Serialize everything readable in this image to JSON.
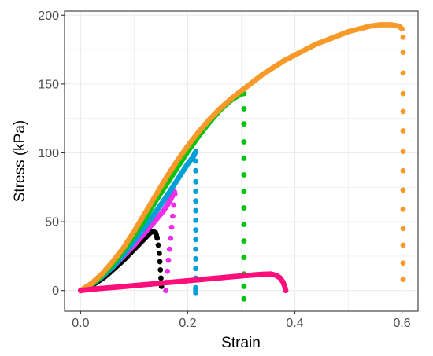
{
  "chart_data": {
    "type": "scatter",
    "title": "",
    "xlabel": "Strain",
    "ylabel": "Stress (kPa)",
    "xlim": [
      -0.03,
      0.63
    ],
    "ylim": [
      -15,
      203
    ],
    "x_ticks": [
      0.0,
      0.2,
      0.4,
      0.6
    ],
    "x_tick_labels": [
      "0.0",
      "0.2",
      "0.4",
      "0.6"
    ],
    "y_ticks": [
      0,
      50,
      100,
      150,
      200
    ],
    "y_tick_labels": [
      "0",
      "50",
      "100",
      "150",
      "200"
    ],
    "grid": true,
    "legend": "none",
    "series": [
      {
        "color": "#000000",
        "points": [
          [
            0.0,
            0
          ],
          [
            0.01,
            1.5
          ],
          [
            0.02,
            3.5
          ],
          [
            0.03,
            6
          ],
          [
            0.04,
            8.5
          ],
          [
            0.05,
            11.5
          ],
          [
            0.06,
            15
          ],
          [
            0.07,
            18.5
          ],
          [
            0.08,
            22
          ],
          [
            0.09,
            26
          ],
          [
            0.1,
            30
          ],
          [
            0.11,
            34
          ],
          [
            0.12,
            38
          ],
          [
            0.125,
            40
          ],
          [
            0.13,
            42
          ],
          [
            0.135,
            43
          ],
          [
            0.14,
            42
          ],
          [
            0.143,
            38
          ],
          [
            0.145,
            33
          ],
          [
            0.147,
            27
          ],
          [
            0.148,
            21
          ],
          [
            0.149,
            15
          ],
          [
            0.15,
            9
          ],
          [
            0.151,
            3
          ]
        ]
      },
      {
        "color": "#ee2ee8",
        "points": [
          [
            0.0,
            0
          ],
          [
            0.02,
            4
          ],
          [
            0.04,
            10
          ],
          [
            0.06,
            17
          ],
          [
            0.08,
            25
          ],
          [
            0.1,
            33
          ],
          [
            0.12,
            42
          ],
          [
            0.14,
            51
          ],
          [
            0.155,
            58
          ],
          [
            0.165,
            64
          ],
          [
            0.172,
            69
          ],
          [
            0.175,
            72
          ],
          [
            0.176,
            70
          ],
          [
            0.174,
            62
          ],
          [
            0.172,
            54
          ],
          [
            0.17,
            46
          ],
          [
            0.168,
            38
          ],
          [
            0.166,
            30
          ],
          [
            0.164,
            22
          ],
          [
            0.162,
            14
          ],
          [
            0.16,
            6
          ],
          [
            0.159,
            0
          ]
        ]
      },
      {
        "color": "#009fd7",
        "points": [
          [
            0.0,
            0
          ],
          [
            0.02,
            4
          ],
          [
            0.04,
            10
          ],
          [
            0.06,
            17
          ],
          [
            0.08,
            26
          ],
          [
            0.1,
            36
          ],
          [
            0.12,
            46
          ],
          [
            0.14,
            57
          ],
          [
            0.16,
            68
          ],
          [
            0.18,
            80
          ],
          [
            0.2,
            92
          ],
          [
            0.21,
            97
          ],
          [
            0.215,
            101
          ],
          [
            0.215,
            94
          ],
          [
            0.215,
            87
          ],
          [
            0.215,
            79
          ],
          [
            0.215,
            72
          ],
          [
            0.215,
            65
          ],
          [
            0.215,
            58
          ],
          [
            0.215,
            51
          ],
          [
            0.215,
            44
          ],
          [
            0.215,
            37
          ],
          [
            0.215,
            30
          ],
          [
            0.215,
            23
          ],
          [
            0.215,
            16
          ],
          [
            0.215,
            9
          ],
          [
            0.215,
            2
          ],
          [
            0.215,
            -2
          ]
        ]
      },
      {
        "color": "#00c410",
        "points": [
          [
            0.0,
            0
          ],
          [
            0.02,
            4
          ],
          [
            0.04,
            11
          ],
          [
            0.06,
            19
          ],
          [
            0.08,
            29
          ],
          [
            0.1,
            40
          ],
          [
            0.12,
            52
          ],
          [
            0.14,
            65
          ],
          [
            0.16,
            77
          ],
          [
            0.18,
            89
          ],
          [
            0.2,
            101
          ],
          [
            0.22,
            112
          ],
          [
            0.24,
            122
          ],
          [
            0.26,
            131
          ],
          [
            0.28,
            138
          ],
          [
            0.3,
            143
          ],
          [
            0.305,
            143
          ],
          [
            0.305,
            132
          ],
          [
            0.305,
            121
          ],
          [
            0.305,
            108
          ],
          [
            0.305,
            96
          ],
          [
            0.305,
            84
          ],
          [
            0.305,
            72
          ],
          [
            0.305,
            60
          ],
          [
            0.305,
            48
          ],
          [
            0.305,
            36
          ],
          [
            0.305,
            24
          ],
          [
            0.305,
            12
          ],
          [
            0.305,
            3
          ],
          [
            0.305,
            -6
          ]
        ]
      },
      {
        "color": "#f89a2a",
        "points": [
          [
            0.0,
            0
          ],
          [
            0.02,
            5
          ],
          [
            0.04,
            12
          ],
          [
            0.06,
            21
          ],
          [
            0.08,
            31
          ],
          [
            0.1,
            43
          ],
          [
            0.12,
            56
          ],
          [
            0.14,
            69
          ],
          [
            0.16,
            82
          ],
          [
            0.18,
            94
          ],
          [
            0.2,
            105
          ],
          [
            0.22,
            115
          ],
          [
            0.24,
            124
          ],
          [
            0.26,
            132
          ],
          [
            0.28,
            139
          ],
          [
            0.3,
            145
          ],
          [
            0.32,
            151
          ],
          [
            0.34,
            157
          ],
          [
            0.36,
            162
          ],
          [
            0.38,
            167
          ],
          [
            0.4,
            171
          ],
          [
            0.42,
            175
          ],
          [
            0.44,
            179
          ],
          [
            0.46,
            182
          ],
          [
            0.48,
            185
          ],
          [
            0.5,
            188
          ],
          [
            0.52,
            190
          ],
          [
            0.54,
            192
          ],
          [
            0.56,
            193
          ],
          [
            0.58,
            193
          ],
          [
            0.595,
            192
          ],
          [
            0.6,
            190
          ],
          [
            0.602,
            184
          ],
          [
            0.602,
            173
          ],
          [
            0.602,
            158
          ],
          [
            0.602,
            143
          ],
          [
            0.602,
            130
          ],
          [
            0.602,
            116
          ],
          [
            0.602,
            101
          ],
          [
            0.602,
            87
          ],
          [
            0.602,
            73
          ],
          [
            0.602,
            59
          ],
          [
            0.602,
            45
          ],
          [
            0.602,
            33
          ],
          [
            0.602,
            20
          ],
          [
            0.602,
            8
          ]
        ]
      },
      {
        "color": "#ff0f7b",
        "points": [
          [
            0.0,
            0
          ],
          [
            0.02,
            1
          ],
          [
            0.04,
            1.6
          ],
          [
            0.06,
            2.2
          ],
          [
            0.08,
            2.9
          ],
          [
            0.1,
            3.6
          ],
          [
            0.12,
            4.3
          ],
          [
            0.14,
            5
          ],
          [
            0.16,
            5.7
          ],
          [
            0.18,
            6.4
          ],
          [
            0.2,
            7.1
          ],
          [
            0.22,
            7.8
          ],
          [
            0.24,
            8.5
          ],
          [
            0.26,
            9.2
          ],
          [
            0.28,
            9.9
          ],
          [
            0.3,
            10.6
          ],
          [
            0.32,
            11.2
          ],
          [
            0.34,
            11.8
          ],
          [
            0.355,
            12
          ],
          [
            0.365,
            11
          ],
          [
            0.373,
            9
          ],
          [
            0.378,
            6
          ],
          [
            0.381,
            3
          ],
          [
            0.383,
            0
          ]
        ]
      }
    ]
  }
}
